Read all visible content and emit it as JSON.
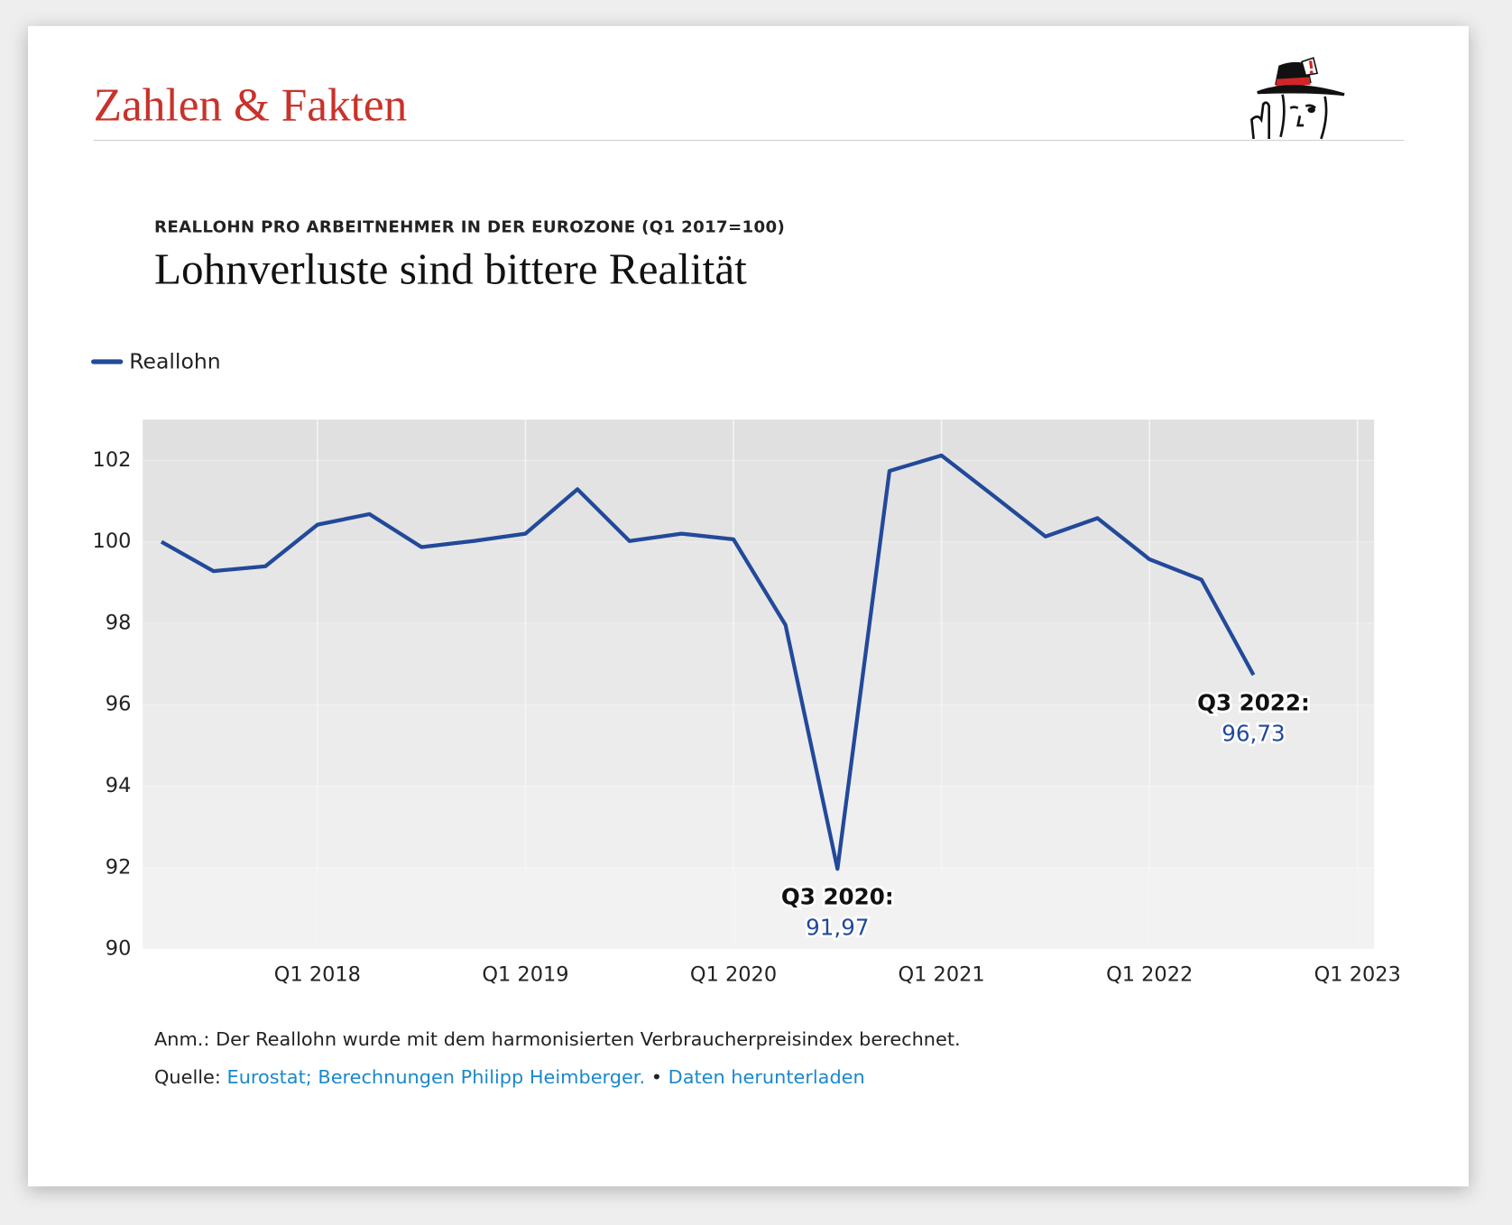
{
  "header": {
    "title": "Zahlen & Fakten"
  },
  "chart_data": {
    "type": "line",
    "subtitle": "REALLOHN PRO ARBEITNEHMER IN DER EUROZONE (Q1 2017=100)",
    "title": "Lohnverluste sind bittere Realität",
    "x": [
      2017.25,
      2017.5,
      2017.75,
      2018,
      2018.25,
      2018.5,
      2018.75,
      2019,
      2019.25,
      2019.5,
      2019.75,
      2020,
      2020.25,
      2020.5,
      2020.75,
      2021,
      2021.25,
      2021.5,
      2021.75,
      2022,
      2022.25,
      2022.5
    ],
    "series": [
      {
        "name": "Reallohn",
        "color": "#22499a",
        "values": [
          100.0,
          99.28,
          99.4,
          100.42,
          100.68,
          99.87,
          100.02,
          100.2,
          101.29,
          100.02,
          100.2,
          100.06,
          97.96,
          91.97,
          101.74,
          102.12,
          101.13,
          100.13,
          100.58,
          99.57,
          99.07,
          96.73
        ],
        "value_labels": [
          null,
          null,
          null,
          null,
          null,
          null,
          null,
          null,
          null,
          null,
          null,
          null,
          null,
          "91,97",
          null,
          null,
          null,
          null,
          null,
          null,
          null,
          "96,73"
        ]
      }
    ],
    "annotations": [
      {
        "x": 2020.5,
        "text": "Q3 2020:"
      },
      {
        "x": 2022.5,
        "text": "Q3 2022:"
      }
    ],
    "xlim": [
      2017.16,
      2023.08
    ],
    "xticks": [
      {
        "value": 2018,
        "label": "Q1 2018"
      },
      {
        "value": 2019,
        "label": "Q1 2019"
      },
      {
        "value": 2020,
        "label": "Q1 2020"
      },
      {
        "value": 2021,
        "label": "Q1 2021"
      },
      {
        "value": 2022,
        "label": "Q1 2022"
      },
      {
        "value": 2023,
        "label": "Q1 2023"
      }
    ],
    "ylim": [
      90,
      103
    ],
    "yticks": [
      90,
      92,
      94,
      96,
      98,
      100,
      102
    ],
    "grid": true
  },
  "notes": {
    "note": "Anm.: Der Reallohn wurde mit dem harmonisierten Verbraucherpreisindex berechnet.",
    "source_label": "Quelle:",
    "source_link": "Eurostat; Berechnungen Philipp Heimberger.",
    "separator": "•",
    "download": "Daten herunterladen"
  }
}
